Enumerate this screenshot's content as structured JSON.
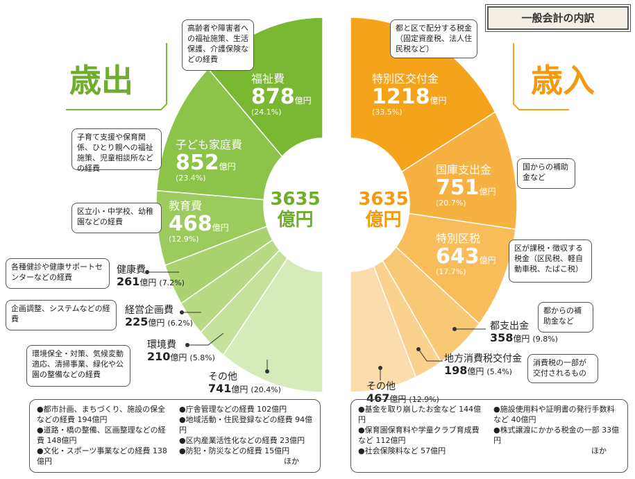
{
  "badge": "一般会計の内訳",
  "chart_data": [
    {
      "type": "half-donut",
      "title": "歳出",
      "total": 3635,
      "unit": "億円",
      "categories": [
        "福祉費",
        "子ども家庭費",
        "教育費",
        "健康費",
        "経営企画費",
        "環境費",
        "その他"
      ],
      "values": [
        878,
        852,
        468,
        261,
        225,
        210,
        741
      ],
      "percent_labels": [
        "(24.1%)",
        "(23.4%)",
        "(12.9%)",
        "(7.2%)",
        "(6.2%)",
        "(5.8%)",
        "(20.4%)"
      ],
      "colors": [
        "#7ab833",
        "#8cc349",
        "#9acb5c",
        "#a9d370",
        "#b7da85",
        "#c5e19a",
        "#d7eab9"
      ],
      "notes": [
        "高齢者や障害者への福祉施策、生活保護、介護保険などの経費",
        "子育て支援や保育関係、ひとり親への福祉施策、児童相談所などの経費",
        "区立小・中学校、幼稚園などの経費",
        "各種健診や健康サポートセンターなどの経費",
        "企画調整、システムなどの経費",
        "環境保全・対策、気候変動適応、清掃事業、緑化や公園の整備などの経費",
        null
      ],
      "other_items": [
        "●都市計画、まちづくり、施設の保全などの経費 194億円",
        "●道路・橋の整備、区画整理などの経費 148億円",
        "●文化・スポーツ事業などの経費 138億円",
        "●庁舎管理などの経費 102億円",
        "●地域活動・住民登録などの経費 94億円",
        "●区内産業活性化などの経費 23億円",
        "●防犯・防災などの経費 15億円"
      ],
      "other_suffix": "ほか"
    },
    {
      "type": "half-donut",
      "title": "歳入",
      "total": 3635,
      "unit": "億円",
      "categories": [
        "特別区交付金",
        "国庫支出金",
        "特別区税",
        "都支出金",
        "地方消費税交付金",
        "その他"
      ],
      "values": [
        1218,
        751,
        643,
        358,
        198,
        467
      ],
      "percent_labels": [
        "(33.5%)",
        "(20.7%)",
        "(17.7%)",
        "(9.8%)",
        "(5.4%)",
        "(12.9%)"
      ],
      "colors": [
        "#f5a31a",
        "#f7b140",
        "#f8bd5a",
        "#f9c875",
        "#fad290",
        "#fbdcab"
      ],
      "notes": [
        "都と区で配分する税金（固定資産税、法人住民税など）",
        "国からの補助金など",
        "区が課税・徴収する税金（区民税、軽自動車税、たばこ税）",
        "都からの補助金など",
        "消費税の一部が交付されるもの",
        null
      ],
      "other_items": [
        "●基金を取り崩したお金など 144億円",
        "●保育園保育料や学童クラブ育成費など 112億円",
        "●社会保険料など 57億円",
        "●施設使用料や証明書の発行手数料など 40億円",
        "●株式譲渡にかかる税金の一部 33億円"
      ],
      "other_suffix": "ほか"
    }
  ]
}
